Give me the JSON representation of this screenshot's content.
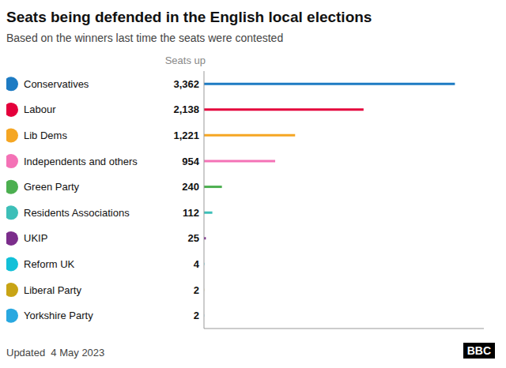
{
  "chart_data": {
    "type": "bar",
    "orientation": "horizontal",
    "title": "Seats being defended in the English local elections",
    "subtitle": "Based on the winners last time the seats were contested",
    "annotations": [
      "Seats up",
      "Updated  4 May 2023",
      "BBC"
    ],
    "categories": [
      "Conservatives",
      "Labour",
      "Lib Dems",
      "Independents and others",
      "Green Party",
      "Residents Associations",
      "UKIP",
      "Reform UK",
      "Liberal Party",
      "Yorkshire Party"
    ],
    "values": [
      3362,
      2138,
      1221,
      954,
      240,
      112,
      25,
      4,
      2,
      2
    ],
    "value_labels": [
      "3,362",
      "2,138",
      "1,221",
      "954",
      "240",
      "112",
      "25",
      "4",
      "2",
      "2"
    ],
    "data_labels": true,
    "colors": [
      "#1d7bc3",
      "#e4003b",
      "#f5a623",
      "#f472b6",
      "#4caf50",
      "#3dbfb8",
      "#7b2d8b",
      "#12c0d8",
      "#c8a415",
      "#29a8e0"
    ],
    "xlim": [
      0,
      3750
    ],
    "tick_labels": false
  }
}
